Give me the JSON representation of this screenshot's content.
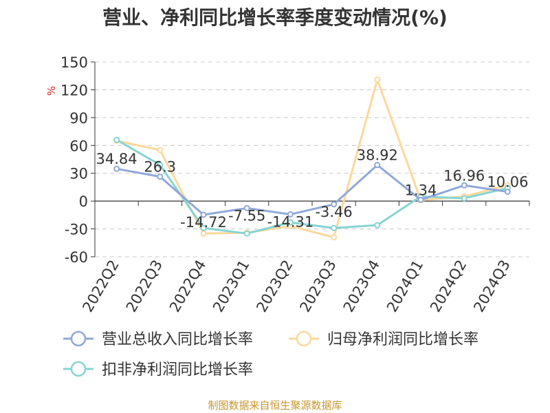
{
  "title": "营业、净利同比增长率季度变动情况(%)",
  "source": "制图数据来自恒生聚源数据库",
  "chart_data": {
    "type": "line",
    "unit_label": "%",
    "categories": [
      "2022Q2",
      "2022Q3",
      "2022Q4",
      "2023Q1",
      "2023Q2",
      "2023Q3",
      "2023Q4",
      "2024Q1",
      "2024Q2",
      "2024Q3"
    ],
    "ylim": [
      -60,
      150
    ],
    "yticks": [
      -60,
      -30,
      0,
      30,
      60,
      90,
      120,
      150
    ],
    "grid": true,
    "legend_position": "bottom",
    "series": [
      {
        "name": "营业总收入同比增长率",
        "color": "#8fa8d8",
        "values": [
          34.84,
          26.3,
          -14.72,
          -7.55,
          -14.31,
          -3.46,
          38.92,
          1.34,
          16.96,
          10.06
        ],
        "labels": [
          "34.84",
          "26.3",
          "-14.72",
          "-7.55",
          "-14.31",
          "-3.46",
          "38.92",
          "1.34",
          "16.96",
          "10.06"
        ]
      },
      {
        "name": "归母净利润同比增长率",
        "color": "#fbd89a",
        "values": [
          65,
          55,
          -35,
          -34,
          -27,
          -39,
          131,
          1,
          5,
          17
        ]
      },
      {
        "name": "扣非净利润同比增长率",
        "color": "#86d4d3",
        "values": [
          66,
          39,
          -29,
          -35,
          -23,
          -29,
          -26,
          5,
          3,
          14
        ]
      }
    ]
  }
}
